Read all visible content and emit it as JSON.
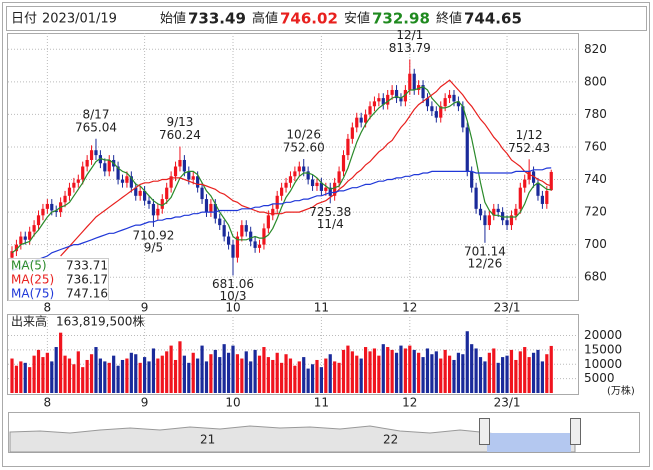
{
  "header": {
    "date_label": "日付",
    "date": "2023/01/19",
    "open_label": "始値",
    "high_label": "高値",
    "low_label": "安値",
    "close_label": "終値"
  },
  "chart_data": {
    "type": "candlestick",
    "categories": [
      null,
      null,
      null,
      null,
      null,
      null,
      null,
      null,
      "8",
      null,
      null,
      null,
      null,
      null,
      null,
      null,
      null,
      null,
      null,
      null,
      null,
      null,
      null,
      null,
      null,
      null,
      null,
      null,
      null,
      null,
      "9",
      null,
      null,
      null,
      null,
      null,
      null,
      null,
      null,
      null,
      null,
      null,
      null,
      null,
      null,
      null,
      null,
      null,
      null,
      null,
      "10",
      null,
      null,
      null,
      null,
      null,
      null,
      null,
      null,
      null,
      null,
      null,
      null,
      null,
      null,
      null,
      null,
      null,
      null,
      null,
      "11",
      null,
      null,
      null,
      null,
      null,
      null,
      null,
      null,
      null,
      null,
      null,
      null,
      null,
      null,
      null,
      null,
      null,
      null,
      null,
      "12",
      null,
      null,
      null,
      null,
      null,
      null,
      null,
      null,
      null,
      null,
      null,
      null,
      null,
      null,
      null,
      null,
      null,
      null,
      null,
      null,
      null,
      "23/1",
      null,
      null,
      null,
      null,
      null,
      null,
      null,
      null,
      null,
      null
    ],
    "open": [
      692,
      696,
      700,
      705,
      703,
      708,
      712,
      718,
      722,
      725,
      721,
      720,
      726,
      730,
      735,
      738,
      740,
      748,
      752,
      758,
      755,
      750,
      745,
      752,
      748,
      740,
      738,
      742,
      735,
      730,
      733,
      727,
      725,
      718,
      722,
      728,
      735,
      742,
      748,
      752,
      745,
      740,
      742,
      735,
      728,
      720,
      725,
      716,
      712,
      705,
      700,
      692,
      705,
      712,
      708,
      702,
      698,
      700,
      710,
      718,
      722,
      730,
      735,
      738,
      742,
      745,
      748,
      745,
      740,
      736,
      738,
      733,
      735,
      730,
      738,
      745,
      755,
      765,
      772,
      778,
      775,
      780,
      785,
      788,
      790,
      786,
      792,
      795,
      790,
      788,
      795,
      805,
      795,
      798,
      790,
      785,
      782,
      778,
      785,
      790,
      792,
      788,
      785,
      772,
      745,
      735,
      722,
      718,
      712,
      718,
      722,
      720,
      715,
      712,
      718,
      722,
      735,
      740,
      745,
      738,
      730,
      725,
      733.49
    ],
    "high": [
      699,
      703,
      708,
      708,
      711,
      715,
      721,
      725,
      728,
      728,
      724,
      729,
      733,
      738,
      741,
      743,
      751,
      755,
      761,
      765.04,
      758,
      753,
      755,
      755,
      751,
      743,
      745,
      745,
      738,
      736,
      736,
      730,
      728,
      725,
      731,
      738,
      745,
      751,
      760.24,
      755,
      748,
      745,
      745,
      738,
      731,
      728,
      728,
      719,
      715,
      708,
      703,
      708,
      715,
      715,
      711,
      705,
      703,
      713,
      721,
      725,
      733,
      738,
      741,
      745,
      748,
      751,
      752.6,
      748,
      743,
      741,
      741,
      738,
      738,
      741,
      748,
      758,
      768,
      775,
      781,
      781,
      783,
      788,
      791,
      793,
      793,
      795,
      798,
      798,
      793,
      798,
      813.79,
      808,
      801,
      801,
      793,
      788,
      785,
      788,
      793,
      795,
      795,
      791,
      788,
      775,
      748,
      738,
      725,
      721,
      721,
      725,
      725,
      723,
      718,
      721,
      725,
      738,
      743,
      752.43,
      748,
      741,
      733,
      736,
      746.02
    ],
    "low": [
      689,
      693,
      697,
      700,
      700,
      705,
      709,
      715,
      719,
      718,
      717,
      717,
      723,
      727,
      732,
      735,
      737,
      745,
      749,
      752,
      747,
      742,
      742,
      745,
      737,
      735,
      735,
      732,
      727,
      727,
      724,
      722,
      710.92,
      715,
      719,
      725,
      732,
      739,
      745,
      742,
      737,
      737,
      732,
      725,
      717,
      717,
      713,
      709,
      702,
      697,
      681.06,
      689,
      702,
      705,
      699,
      695,
      695,
      697,
      707,
      715,
      719,
      727,
      732,
      735,
      739,
      742,
      742,
      737,
      733,
      733,
      730,
      730,
      725.38,
      727,
      735,
      742,
      752,
      762,
      769,
      772,
      772,
      777,
      782,
      785,
      783,
      783,
      789,
      787,
      785,
      785,
      792,
      792,
      792,
      787,
      782,
      779,
      775,
      775,
      782,
      787,
      785,
      782,
      769,
      742,
      732,
      719,
      715,
      701.14,
      709,
      715,
      717,
      712,
      709,
      709,
      715,
      719,
      732,
      737,
      735,
      727,
      722,
      722,
      732.98
    ],
    "close": [
      696,
      700,
      705,
      703,
      708,
      712,
      718,
      722,
      725,
      721,
      720,
      726,
      730,
      735,
      738,
      740,
      748,
      752,
      758,
      755,
      750,
      745,
      752,
      748,
      740,
      738,
      742,
      735,
      730,
      733,
      727,
      725,
      718,
      722,
      728,
      735,
      742,
      748,
      752,
      745,
      740,
      742,
      735,
      728,
      720,
      725,
      716,
      712,
      705,
      700,
      692,
      705,
      712,
      708,
      702,
      698,
      700,
      710,
      718,
      722,
      730,
      735,
      738,
      742,
      745,
      748,
      745,
      740,
      736,
      738,
      733,
      735,
      730,
      738,
      745,
      755,
      765,
      772,
      778,
      775,
      780,
      785,
      788,
      790,
      786,
      792,
      795,
      790,
      788,
      795,
      805,
      795,
      798,
      790,
      785,
      782,
      778,
      785,
      790,
      792,
      788,
      785,
      772,
      745,
      735,
      722,
      718,
      712,
      718,
      722,
      720,
      715,
      712,
      718,
      722,
      735,
      740,
      745,
      738,
      730,
      725,
      733,
      744.65
    ],
    "up_color": "#f0141e",
    "down_color": "#1a2a9a",
    "series": [
      {
        "name": "MA(5)",
        "color": "#2a8a2a",
        "values": [
          695,
          697,
          700,
          701,
          702,
          706,
          709,
          713,
          717,
          720,
          721,
          723,
          724,
          726,
          730,
          734,
          738,
          743,
          747,
          751,
          753,
          752,
          752,
          750,
          747,
          745,
          744,
          741,
          737,
          736,
          733,
          730,
          727,
          725,
          724,
          726,
          729,
          735,
          741,
          744,
          745,
          745,
          743,
          738,
          733,
          730,
          725,
          720,
          716,
          712,
          705,
          703,
          703,
          703,
          704,
          705,
          704,
          704,
          706,
          710,
          716,
          723,
          729,
          733,
          738,
          742,
          744,
          744,
          743,
          741,
          738,
          736,
          734,
          735,
          736,
          741,
          747,
          755,
          763,
          769,
          774,
          778,
          781,
          784,
          786,
          788,
          790,
          791,
          790,
          792,
          795,
          795,
          796,
          797,
          795,
          790,
          787,
          784,
          784,
          785,
          787,
          788,
          785,
          776,
          765,
          752,
          738,
          726,
          721,
          718,
          718,
          717,
          717,
          717,
          717,
          720,
          725,
          732,
          736,
          738,
          736,
          734,
          733.71
        ]
      },
      {
        "name": "MA(25)",
        "color": "#e8201e",
        "values": [
          null,
          null,
          null,
          null,
          null,
          null,
          null,
          null,
          null,
          null,
          null,
          693,
          696,
          699,
          702,
          705,
          708,
          711,
          714,
          717,
          719,
          721,
          723,
          725,
          727,
          729,
          731,
          733,
          735,
          737,
          738,
          738,
          739,
          739,
          740,
          740,
          741,
          741,
          741,
          740,
          739,
          738,
          737,
          737,
          736,
          735,
          734,
          732,
          731,
          729,
          727,
          726,
          724,
          723,
          722,
          721,
          720,
          720,
          719,
          719,
          719,
          719,
          720,
          720,
          720,
          720,
          721,
          722,
          723,
          725,
          726,
          727,
          729,
          731,
          734,
          736,
          739,
          741,
          744,
          746,
          749,
          751,
          754,
          757,
          759,
          762,
          764,
          768,
          772,
          775,
          779,
          783,
          786,
          788,
          790,
          792,
          794,
          797,
          799,
          801,
          798,
          795,
          792,
          788,
          785,
          781,
          777,
          774,
          770,
          766,
          763,
          759,
          756,
          752,
          750,
          748,
          745,
          743,
          742,
          740,
          739,
          737,
          736.17
        ]
      },
      {
        "name": "MA(75)",
        "color": "#2038d8",
        "values": [
          684,
          685,
          686,
          688,
          689,
          690,
          691,
          692,
          693,
          695,
          696,
          697,
          698,
          699,
          700,
          700,
          701,
          702,
          703,
          704,
          705,
          706,
          707,
          707,
          708,
          709,
          710,
          711,
          712,
          712,
          713,
          714,
          714,
          715,
          715,
          716,
          716,
          717,
          717,
          718,
          718,
          719,
          719,
          720,
          720,
          720,
          720,
          721,
          721,
          721,
          721,
          721,
          722,
          722,
          722,
          723,
          723,
          724,
          724,
          725,
          725,
          725,
          726,
          726,
          727,
          727,
          728,
          728,
          729,
          730,
          730,
          731,
          732,
          732,
          733,
          733,
          734,
          735,
          735,
          736,
          737,
          737,
          738,
          739,
          739,
          740,
          740,
          741,
          741,
          742,
          742,
          743,
          743,
          744,
          744,
          745,
          745,
          745,
          745,
          745,
          745,
          745,
          745,
          745,
          745,
          744,
          744,
          744,
          744,
          744,
          744,
          744,
          744,
          744,
          745,
          745,
          745,
          745,
          746,
          746,
          746,
          747,
          747.16
        ]
      }
    ],
    "ylim": [
      666,
      830
    ],
    "yticks": [
      680,
      700,
      720,
      740,
      760,
      780,
      800,
      820
    ],
    "grid": true,
    "annotations": [
      {
        "date": "8/17",
        "label": "765.04"
      },
      {
        "date": "9/5",
        "label": "710.92"
      },
      {
        "date": "9/13",
        "label": "760.24"
      },
      {
        "date": "10/3",
        "label": "681.06"
      },
      {
        "date": "10/26",
        "label": "752.60"
      },
      {
        "date": "11/4",
        "label": "725.38"
      },
      {
        "date": "12/1",
        "label": "813.79"
      },
      {
        "date": "12/26",
        "label": "701.14"
      },
      {
        "date": "1/12",
        "label": "752.43"
      }
    ],
    "volume": {
      "title": "出来高",
      "latest_label": "163,819,500株",
      "unit": "(万株)",
      "vlim": [
        0,
        27500
      ],
      "vticks": [
        5000,
        10000,
        15000,
        20000
      ],
      "values": [
        12000,
        9500,
        11000,
        10500,
        9000,
        13000,
        15000,
        12500,
        14000,
        11000,
        16000,
        21000,
        13000,
        12000,
        10000,
        14500,
        9000,
        11500,
        13500,
        16000,
        12000,
        11000,
        10500,
        13000,
        9500,
        11500,
        12000,
        14000,
        13500,
        10500,
        12500,
        11000,
        15500,
        12000,
        13000,
        14500,
        16500,
        11500,
        18000,
        13000,
        10500,
        14000,
        12000,
        16500,
        11000,
        13500,
        15000,
        12500,
        17000,
        14000,
        16500,
        13500,
        12000,
        14500,
        11000,
        15000,
        13000,
        16000,
        12500,
        11500,
        14000,
        10500,
        13500,
        12000,
        9500,
        11000,
        12500,
        8500,
        10000,
        11500,
        9000,
        12000,
        13500,
        11000,
        10500,
        15000,
        16500,
        14500,
        13000,
        12000,
        16000,
        14500,
        15500,
        13000,
        17000,
        16000,
        15000,
        14000,
        16500,
        15500,
        16500,
        15000,
        14000,
        12500,
        15500,
        13500,
        14500,
        12000,
        15000,
        13000,
        11500,
        14000,
        13500,
        21500,
        17000,
        15500,
        12500,
        11000,
        14000,
        15500,
        10500,
        12500,
        13000,
        15000,
        11500,
        14500,
        16000,
        12500,
        14000,
        15000,
        11000,
        13500,
        16381.95
      ]
    },
    "navigator": {
      "labels": [
        "21",
        "22"
      ]
    }
  }
}
